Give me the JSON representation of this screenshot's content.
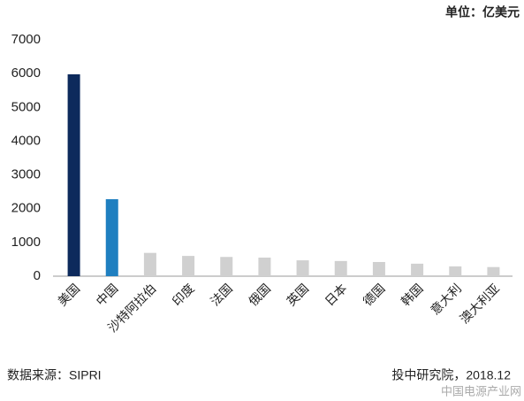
{
  "chart_data": {
    "type": "bar",
    "unit": "单位：亿美元",
    "source": "数据来源：SIPRI",
    "credit": "投中研究院，2018.12",
    "watermark": "中国电源产业网",
    "categories": [
      "美国",
      "中国",
      "沙特阿拉伯",
      "印度",
      "法国",
      "俄国",
      "英国",
      "日本",
      "德国",
      "韩国",
      "意大利",
      "澳大利亚"
    ],
    "values": [
      5980,
      2280,
      690,
      600,
      570,
      550,
      470,
      450,
      420,
      370,
      290,
      270
    ],
    "colors": [
      "#0d2a5c",
      "#1f7fc0",
      "#d0d0d0",
      "#d0d0d0",
      "#d0d0d0",
      "#d0d0d0",
      "#d0d0d0",
      "#d0d0d0",
      "#d0d0d0",
      "#d0d0d0",
      "#d0d0d0",
      "#d0d0d0"
    ],
    "ylim": [
      0,
      7000
    ],
    "yticks": [
      0,
      1000,
      2000,
      3000,
      4000,
      5000,
      6000,
      7000
    ],
    "grid": false
  }
}
